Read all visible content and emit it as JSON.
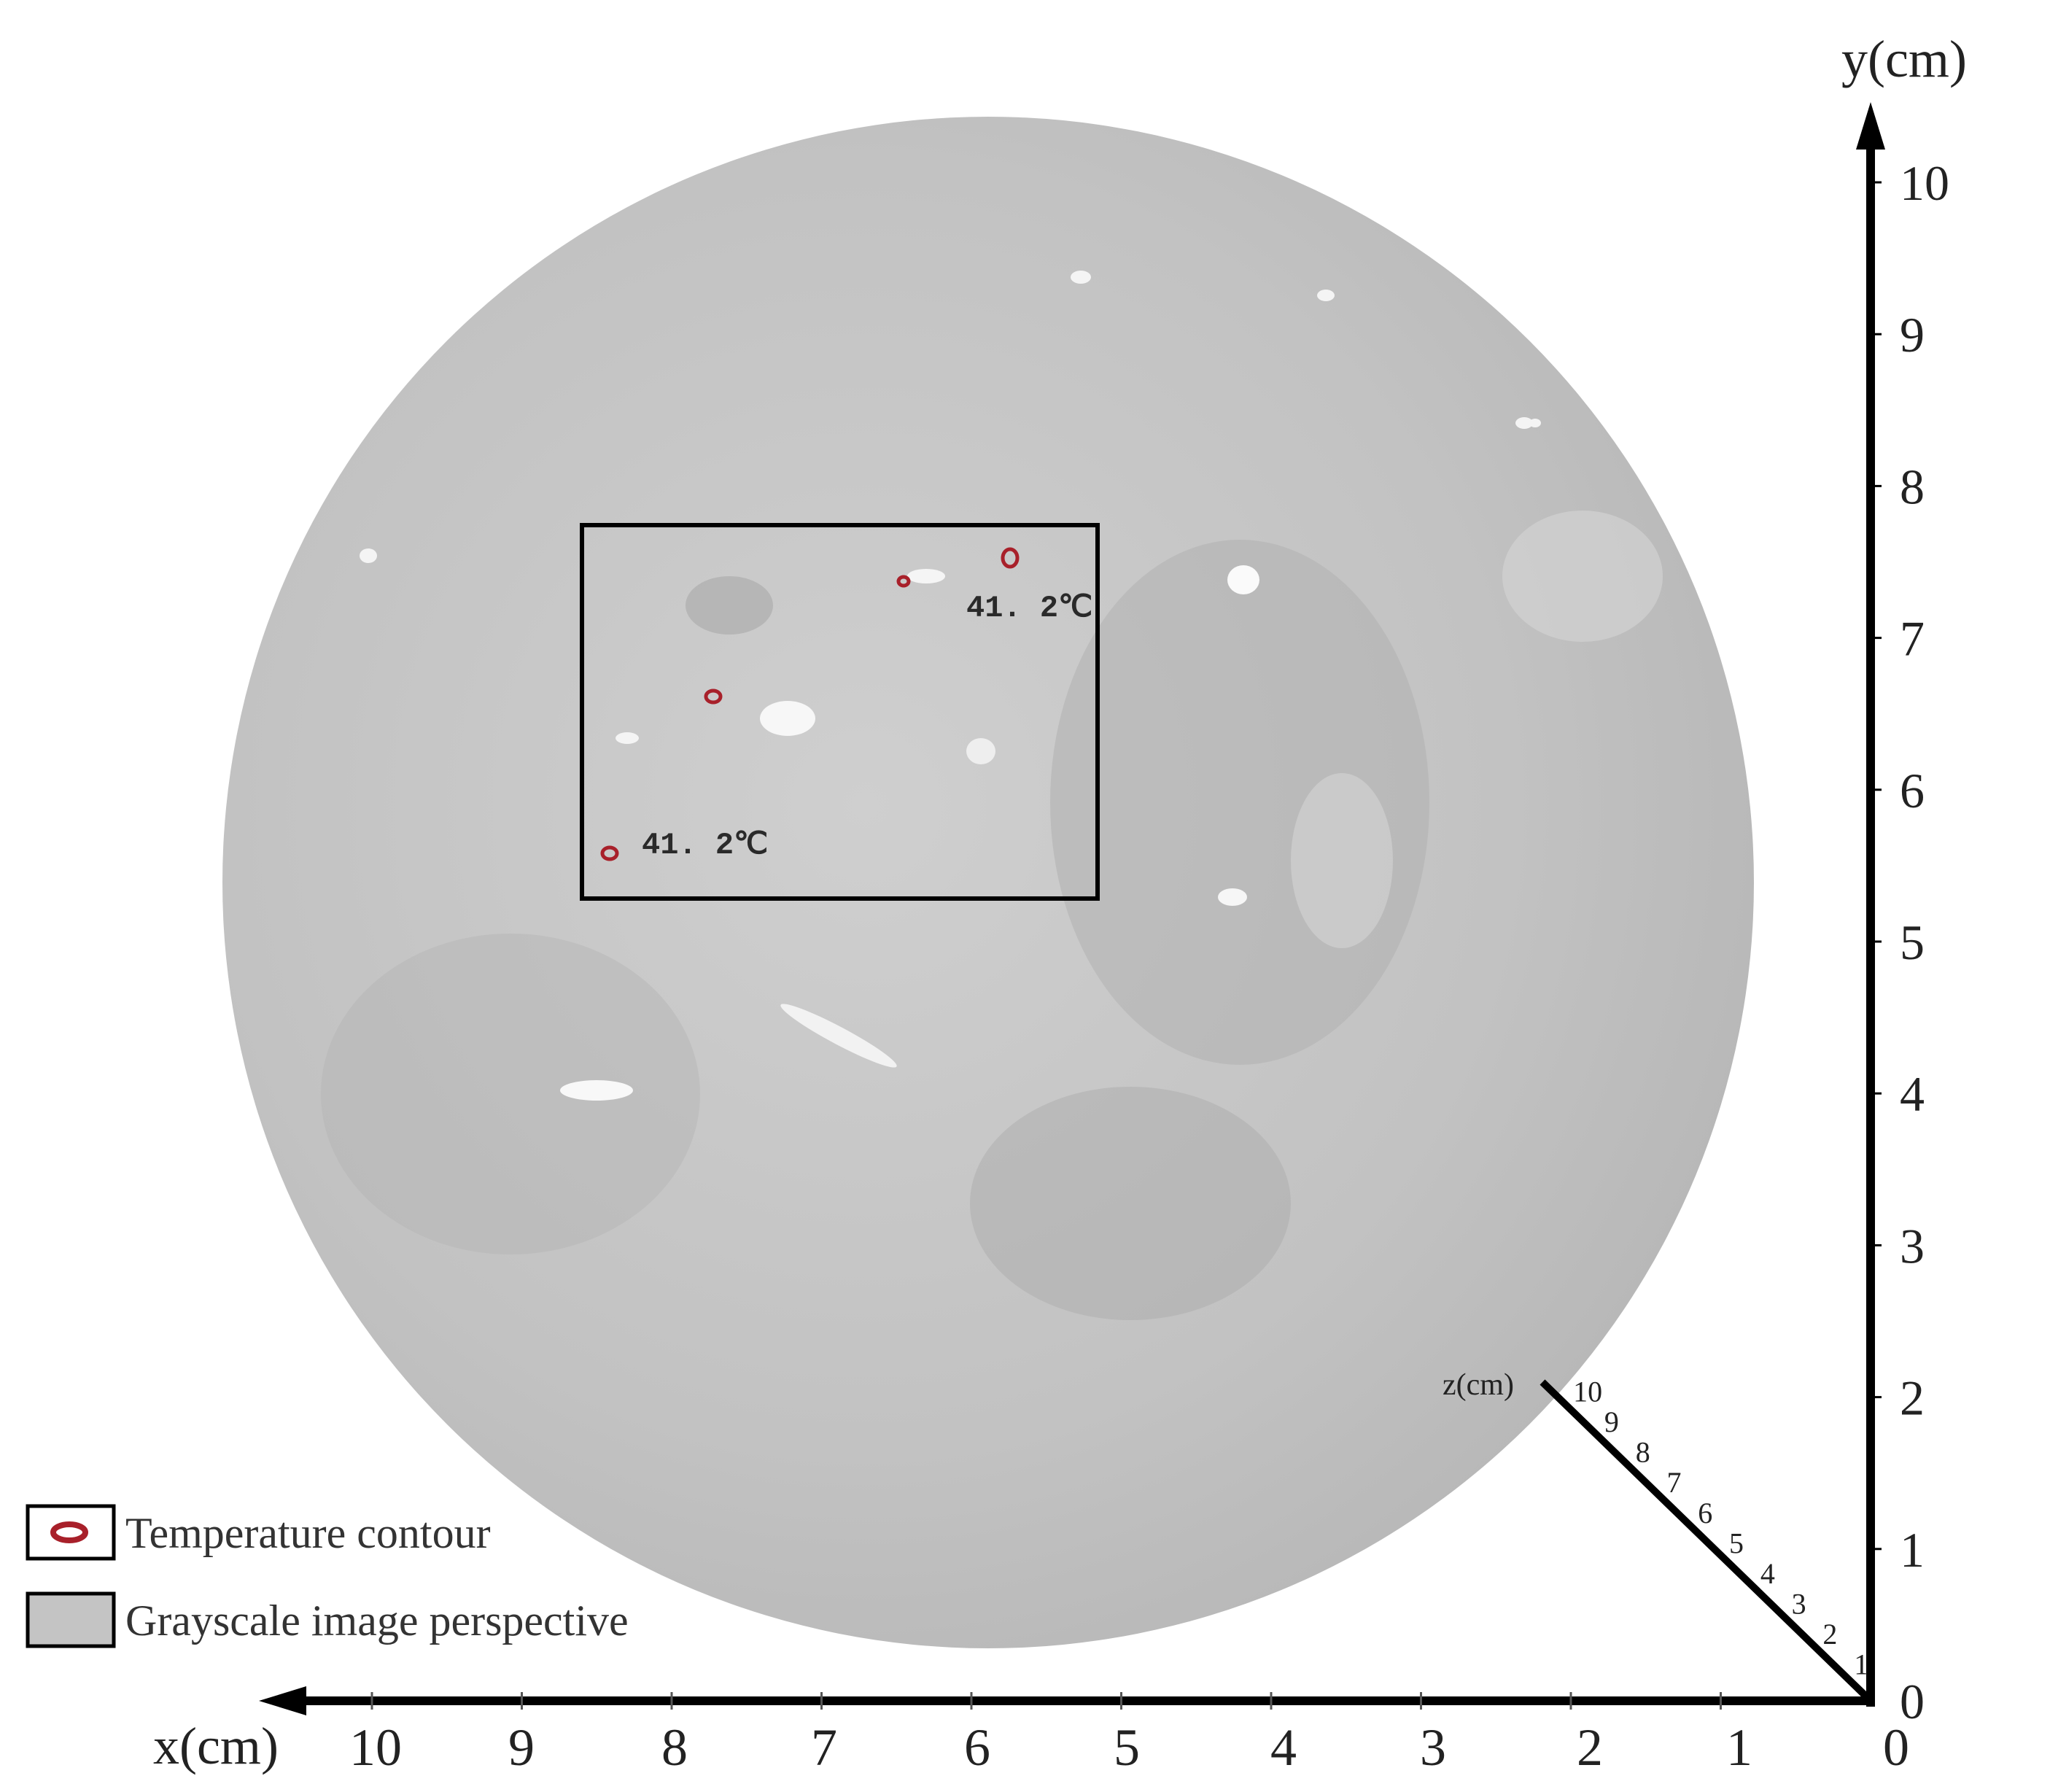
{
  "axes": {
    "x_label": "x(cm)",
    "y_label": "y(cm)",
    "z_label": "z(cm)",
    "x_ticks": [
      "0",
      "1",
      "2",
      "3",
      "4",
      "5",
      "6",
      "7",
      "8",
      "9",
      "10"
    ],
    "y_ticks": [
      "0",
      "1",
      "2",
      "3",
      "4",
      "5",
      "6",
      "7",
      "8",
      "9",
      "10"
    ],
    "z_ticks": [
      "1",
      "2",
      "3",
      "4",
      "5",
      "6",
      "7",
      "8",
      "9",
      "10"
    ]
  },
  "annotations": {
    "temp_upper": "41. 2℃",
    "temp_lower": "41. 2℃"
  },
  "legend": {
    "contour_label": "Temperature contour",
    "grayscale_label": "Grayscale image perspective"
  },
  "colors": {
    "specimen_gray": "#c4c4c4",
    "contour_red": "#a8202a",
    "axis_black": "#000000"
  }
}
